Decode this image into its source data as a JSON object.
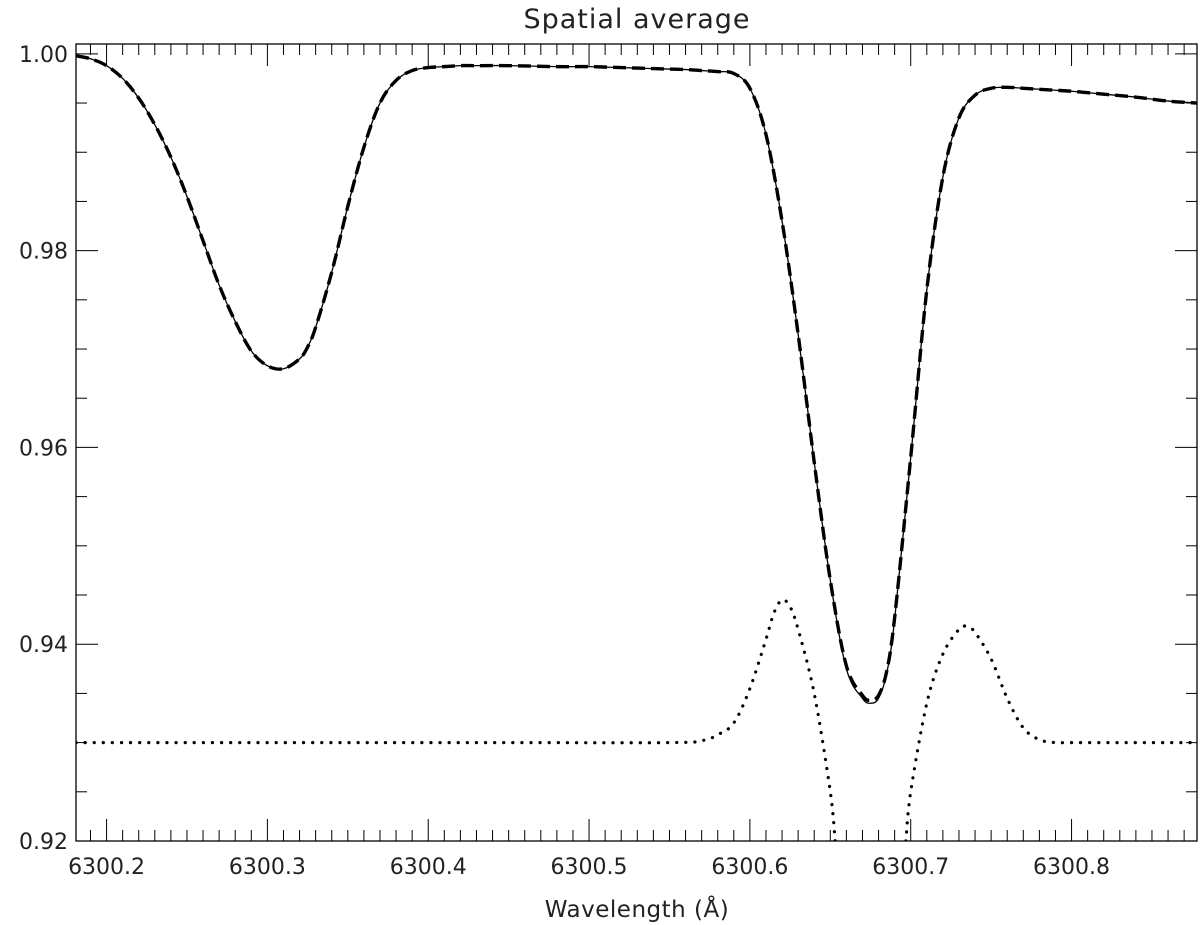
{
  "chart_data": {
    "type": "line",
    "title": "Spatial average",
    "xlabel": "Wavelength (Å)",
    "ylabel": "",
    "xlim": [
      6300.181,
      6300.878
    ],
    "ylim": [
      0.92,
      1.001
    ],
    "x_ticks": [
      6300.2,
      6300.3,
      6300.4,
      6300.5,
      6300.6,
      6300.7,
      6300.8
    ],
    "x_tick_labels": [
      "6300.2",
      "6300.3",
      "6300.4",
      "6300.5",
      "6300.6",
      "6300.7",
      "6300.8"
    ],
    "x_minor_step": 0.01,
    "y_ticks": [
      0.92,
      0.94,
      0.96,
      0.98,
      1.0
    ],
    "y_tick_labels": [
      "0.92",
      "0.94",
      "0.96",
      "0.98",
      "1.00"
    ],
    "y_minor_step": 0.005,
    "grid": false,
    "legend": "none",
    "colors": {
      "line": "#000000",
      "axis": "#000000",
      "text": "#222222"
    },
    "series": [
      {
        "style": "solid",
        "x": [
          6300.181,
          6300.19,
          6300.2,
          6300.21,
          6300.22,
          6300.23,
          6300.24,
          6300.25,
          6300.26,
          6300.27,
          6300.28,
          6300.29,
          6300.3,
          6300.31,
          6300.32,
          6300.325,
          6300.33,
          6300.34,
          6300.35,
          6300.36,
          6300.37,
          6300.38,
          6300.39,
          6300.4,
          6300.41,
          6300.42,
          6300.43,
          6300.45,
          6300.48,
          6300.5,
          6300.52,
          6300.54,
          6300.56,
          6300.57,
          6300.58,
          6300.59,
          6300.6,
          6300.61,
          6300.62,
          6300.63,
          6300.64,
          6300.65,
          6300.66,
          6300.67,
          6300.675,
          6300.68,
          6300.685,
          6300.69,
          6300.7,
          6300.71,
          6300.72,
          6300.73,
          6300.74,
          6300.75,
          6300.76,
          6300.77,
          6300.78,
          6300.79,
          6300.8,
          6300.82,
          6300.84,
          6300.86,
          6300.878
        ],
        "y": [
          0.9998,
          0.9995,
          0.9988,
          0.9975,
          0.9955,
          0.9928,
          0.9895,
          0.9855,
          0.981,
          0.9765,
          0.9728,
          0.9698,
          0.9683,
          0.968,
          0.969,
          0.9702,
          0.9722,
          0.9778,
          0.9845,
          0.9905,
          0.995,
          0.9973,
          0.9983,
          0.9986,
          0.9987,
          0.9988,
          0.9988,
          0.9988,
          0.9987,
          0.9987,
          0.9986,
          0.9985,
          0.9984,
          0.9983,
          0.9982,
          0.998,
          0.9965,
          0.9918,
          0.983,
          0.9715,
          0.9585,
          0.9465,
          0.9375,
          0.9345,
          0.934,
          0.9345,
          0.937,
          0.9425,
          0.959,
          0.976,
          0.9875,
          0.9935,
          0.9958,
          0.9965,
          0.9966,
          0.9965,
          0.9964,
          0.9963,
          0.9962,
          0.9959,
          0.9956,
          0.9952,
          0.995
        ]
      },
      {
        "style": "dashed",
        "x": [
          6300.181,
          6300.19,
          6300.2,
          6300.21,
          6300.22,
          6300.23,
          6300.24,
          6300.25,
          6300.26,
          6300.27,
          6300.28,
          6300.29,
          6300.3,
          6300.31,
          6300.32,
          6300.325,
          6300.33,
          6300.34,
          6300.35,
          6300.36,
          6300.37,
          6300.38,
          6300.39,
          6300.4,
          6300.41,
          6300.42,
          6300.43,
          6300.45,
          6300.48,
          6300.5,
          6300.52,
          6300.54,
          6300.56,
          6300.57,
          6300.58,
          6300.59,
          6300.6,
          6300.61,
          6300.62,
          6300.63,
          6300.64,
          6300.65,
          6300.66,
          6300.67,
          6300.675,
          6300.68,
          6300.685,
          6300.69,
          6300.7,
          6300.71,
          6300.72,
          6300.73,
          6300.74,
          6300.75,
          6300.76,
          6300.77,
          6300.78,
          6300.79,
          6300.8,
          6300.82,
          6300.84,
          6300.86,
          6300.878
        ],
        "y": [
          0.9998,
          0.9995,
          0.9988,
          0.9975,
          0.9955,
          0.9928,
          0.9895,
          0.9855,
          0.981,
          0.9765,
          0.9728,
          0.9698,
          0.9683,
          0.968,
          0.969,
          0.9702,
          0.9722,
          0.9778,
          0.9845,
          0.9905,
          0.995,
          0.9973,
          0.9983,
          0.9986,
          0.9987,
          0.9988,
          0.9988,
          0.9988,
          0.9987,
          0.9987,
          0.9986,
          0.9985,
          0.9984,
          0.9983,
          0.9982,
          0.998,
          0.9965,
          0.9918,
          0.983,
          0.9715,
          0.9585,
          0.9465,
          0.9378,
          0.9348,
          0.9343,
          0.9348,
          0.9372,
          0.9427,
          0.959,
          0.976,
          0.9875,
          0.9935,
          0.9958,
          0.9965,
          0.9966,
          0.9965,
          0.9964,
          0.9963,
          0.9962,
          0.9959,
          0.9956,
          0.9952,
          0.995
        ]
      },
      {
        "style": "dotted",
        "x": [
          6300.181,
          6300.25,
          6300.35,
          6300.45,
          6300.55,
          6300.57,
          6300.58,
          6300.59,
          6300.6,
          6300.61,
          6300.615,
          6300.62,
          6300.625,
          6300.63,
          6300.64,
          6300.65,
          6300.653,
          6300.697,
          6300.7,
          6300.71,
          6300.72,
          6300.73,
          6300.735,
          6300.74,
          6300.75,
          6300.76,
          6300.77,
          6300.78,
          6300.79,
          6300.8,
          6300.84,
          6300.878
        ],
        "y": [
          0.93,
          0.93,
          0.93,
          0.93,
          0.93,
          0.9302,
          0.9308,
          0.932,
          0.9355,
          0.9405,
          0.9432,
          0.9445,
          0.9438,
          0.9415,
          0.935,
          0.925,
          0.92,
          0.92,
          0.925,
          0.934,
          0.939,
          0.9415,
          0.9418,
          0.9412,
          0.9385,
          0.9345,
          0.9315,
          0.9303,
          0.93,
          0.93,
          0.93,
          0.93
        ]
      }
    ]
  }
}
